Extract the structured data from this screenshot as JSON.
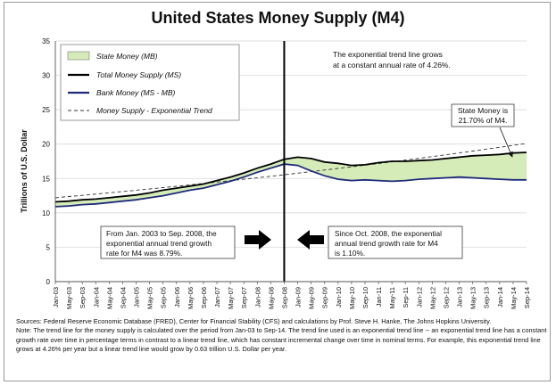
{
  "title": "United States Money Supply (M4)",
  "chart_data": {
    "type": "area",
    "title": "United States Money Supply (M4)",
    "ylabel": "Trillions of U.S. Dollar",
    "xlabel": "",
    "ylim": [
      0,
      35
    ],
    "yticks": [
      "0",
      "5",
      "10",
      "15",
      "20",
      "25",
      "30",
      "35"
    ],
    "xticks": [
      "Jan-03",
      "May-03",
      "Sep-03",
      "Jan-04",
      "May-04",
      "Sep-04",
      "Jan-05",
      "May-05",
      "Sep-05",
      "Jan-06",
      "May-06",
      "Sep-06",
      "Jan-07",
      "May-07",
      "Sep-07",
      "Jan-08",
      "May-08",
      "Sep-08",
      "Jan-09",
      "May-09",
      "Sep-09",
      "Jan-10",
      "May-10",
      "Sep-10",
      "Jan-11",
      "May-11",
      "Sep-11",
      "Jan-12",
      "May-12",
      "Sep-12",
      "Jan-13",
      "May-13",
      "Sep-13",
      "Jan-14",
      "May-14",
      "Sep-14"
    ],
    "legend_position": "top-left",
    "grid": "horizontal",
    "divider_at": "Sep-08",
    "series": [
      {
        "name": "Total Money Supply (MS)",
        "color": "#000000",
        "values": [
          11.6,
          11.7,
          11.9,
          12.0,
          12.2,
          12.4,
          12.6,
          12.9,
          13.3,
          13.6,
          13.9,
          14.2,
          14.7,
          15.2,
          15.8,
          16.5,
          17.1,
          17.8,
          18.1,
          17.9,
          17.4,
          17.2,
          16.9,
          17.0,
          17.3,
          17.5,
          17.5,
          17.6,
          17.7,
          17.9,
          18.1,
          18.3,
          18.4,
          18.5,
          18.7,
          18.8
        ]
      },
      {
        "name": "Bank Money (MS - MB)",
        "color": "#1f2a7a",
        "values": [
          10.9,
          11.0,
          11.2,
          11.3,
          11.5,
          11.7,
          11.9,
          12.2,
          12.5,
          12.9,
          13.3,
          13.6,
          14.1,
          14.6,
          15.2,
          15.9,
          16.5,
          17.1,
          16.9,
          16.1,
          15.4,
          14.9,
          14.7,
          14.8,
          14.7,
          14.6,
          14.7,
          14.9,
          15.0,
          15.1,
          15.2,
          15.1,
          15.0,
          14.9,
          14.8,
          14.8
        ]
      },
      {
        "name": "State Money (MB)",
        "color": "#d6ecb8",
        "fill": true
      },
      {
        "name": "Money Supply - Exponential Trend",
        "color": "#333333",
        "dashed": true,
        "start": 12.2,
        "end": 20.1
      }
    ],
    "annotations": [
      {
        "id": "growth_note",
        "text": [
          "The exponential trend line grows",
          "at a constant annual rate of 4.26%."
        ]
      },
      {
        "id": "state_share",
        "text": [
          "State Money is",
          "21.70% of M4."
        ]
      },
      {
        "id": "pre_period",
        "text": [
          "From Jan. 2003 to Sep. 2008, the",
          "exponential annual trend growth",
          "rate for M4 was 8.79%."
        ]
      },
      {
        "id": "post_period",
        "text": [
          "Since Oct. 2008, the exponential",
          "annual trend growth rate for M4",
          "is 1.10%."
        ]
      }
    ]
  },
  "notes": {
    "sources": "Sources: Federal Reserve Economic Database (FRED), Center for Financial Stability (CFS) and calculations by Prof. Steve H. Hanke, The Johns Hopkins University.",
    "note": "Note: The trend line for the money supply is calculated over the period from Jan-03 to Sep-14. The trend line used is an exponential trend line -- an exponential trend line has a constant growth rate over time in percentage terms in contrast to a linear trend line, which has constant incremental change over time in nominal terms. For example, this exponential trend line grows at 4.26% per year but a linear trend line would grow by 0.63 trillion U.S. Dollar per year."
  }
}
